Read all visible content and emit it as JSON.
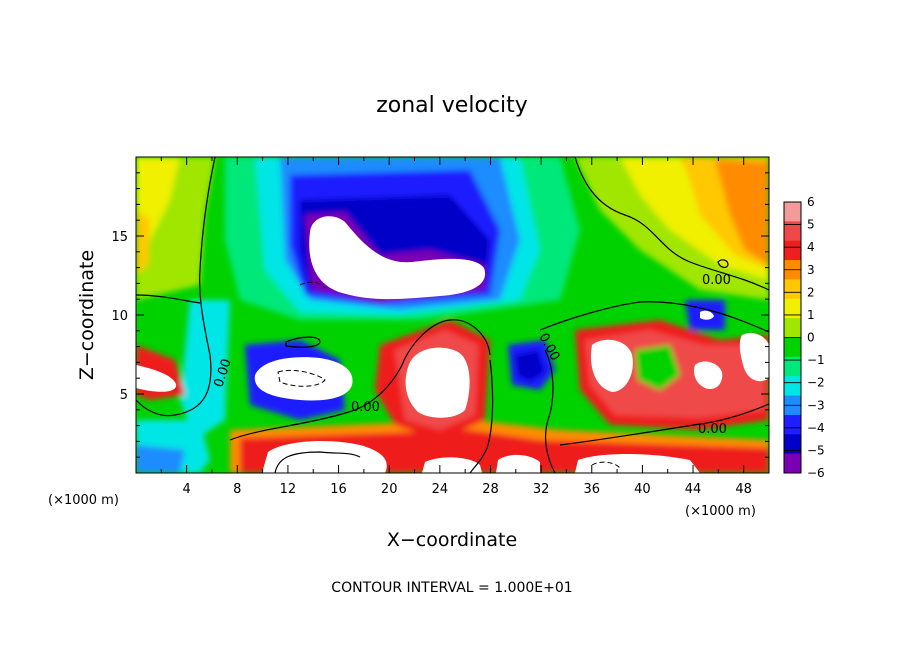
{
  "chart_data": {
    "type": "heatmap",
    "title": "zonal velocity",
    "xlabel": "X−coordinate",
    "ylabel": "Z−coordinate",
    "x_unit": "(×1000 m)",
    "z_unit": "(×1000 m)",
    "xlim": [
      0,
      50
    ],
    "ylim": [
      0,
      20
    ],
    "x_ticks": [
      "4",
      "8",
      "12",
      "16",
      "20",
      "24",
      "28",
      "32",
      "36",
      "40",
      "44",
      "48"
    ],
    "y_ticks": [
      "5",
      "10",
      "15"
    ],
    "colorbar": {
      "levels": [
        "6",
        "5",
        "4",
        "3",
        "2",
        "1",
        "0",
        "−1",
        "−2",
        "−3",
        "−4",
        "−5",
        "−6"
      ],
      "colors": [
        "#f39a9a",
        "#f04848",
        "#ef1f1f",
        "#ff8c00",
        "#ffc800",
        "#f0f000",
        "#a0e600",
        "#00d200",
        "#00e87a",
        "#00e6e6",
        "#1e8cff",
        "#1e1eff",
        "#0000c8",
        "#7a00b4"
      ]
    },
    "contour_labels": [
      "0.00",
      "0.00",
      "0.00",
      "0.00",
      "0.00"
    ],
    "note": "CONTOUR INTERVAL = 1.000E+01",
    "colors": {
      "background": "#00d200",
      "missing": "#ffffff",
      "contour": "#000000"
    }
  }
}
